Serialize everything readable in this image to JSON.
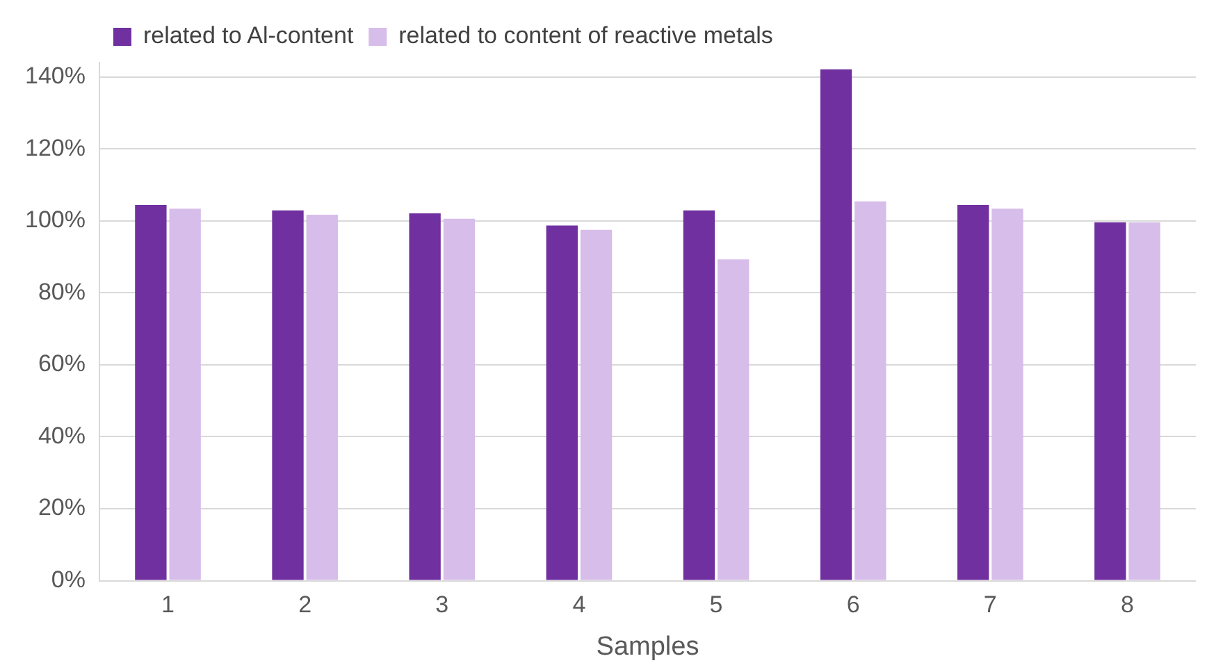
{
  "chart_data": {
    "type": "bar",
    "xlabel": "Samples",
    "categories": [
      "1",
      "2",
      "3",
      "4",
      "5",
      "6",
      "7",
      "8"
    ],
    "series": [
      {
        "name": "related to Al-content",
        "color": "#7030a0",
        "values": [
          104.4,
          102.9,
          102.1,
          98.7,
          102.9,
          142.1,
          104.4,
          99.6
        ]
      },
      {
        "name": "related to content of reactive metals",
        "color": "#d7bde9",
        "values": [
          103.4,
          101.7,
          100.6,
          97.5,
          89.3,
          105.4,
          103.4,
          99.6
        ]
      }
    ],
    "ylim": [
      0,
      144
    ],
    "yticks": [
      {
        "value": 0,
        "label": "0%"
      },
      {
        "value": 20,
        "label": "20%"
      },
      {
        "value": 40,
        "label": "40%"
      },
      {
        "value": 60,
        "label": "60%"
      },
      {
        "value": 80,
        "label": "80%"
      },
      {
        "value": 100,
        "label": "100%"
      },
      {
        "value": 120,
        "label": "120%"
      },
      {
        "value": 140,
        "label": "140%"
      }
    ],
    "grid": "y",
    "legend": "top left"
  }
}
